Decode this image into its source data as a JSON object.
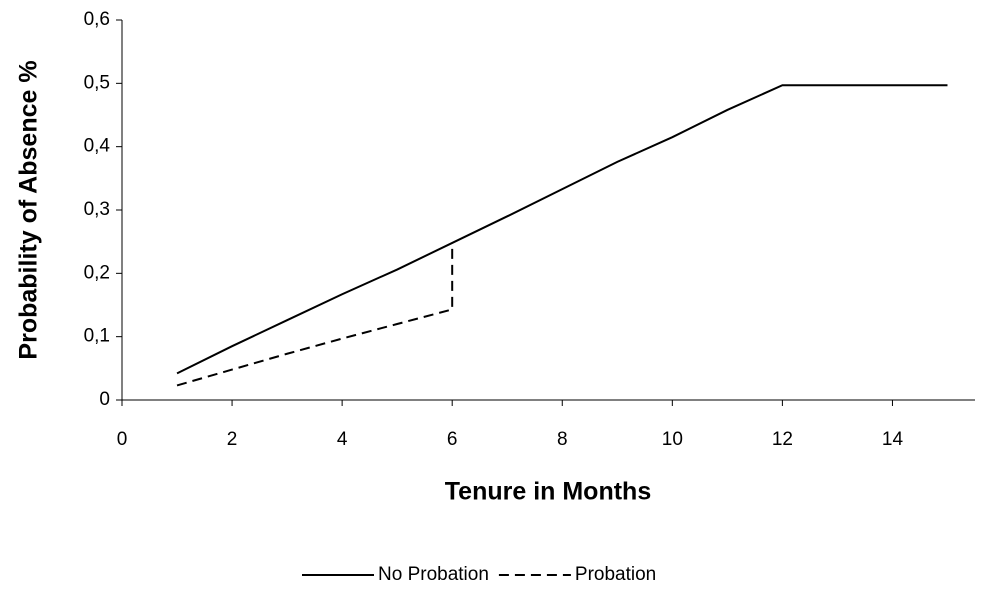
{
  "chart_data": {
    "type": "line",
    "x_label": "Tenure in Months",
    "y_label": "Probability of Absence %",
    "xlim": [
      0,
      15.5
    ],
    "xticks": [
      0,
      2,
      4,
      6,
      8,
      10,
      12,
      14
    ],
    "ylim": [
      0,
      0.6
    ],
    "yticks": [
      0,
      {
        "value": 0.1,
        "label": "0,1"
      },
      {
        "value": 0.2,
        "label": "0,2"
      },
      {
        "value": 0.3,
        "label": "0,3"
      },
      {
        "value": 0.4,
        "label": "0,4"
      },
      {
        "value": 0.5,
        "label": "0,5"
      },
      {
        "value": 0.6,
        "label": "0,6"
      }
    ],
    "legend": "bottom",
    "series": [
      {
        "name": "No Probation",
        "color": "#000000",
        "dash": "solid",
        "x": [
          1,
          2,
          3,
          4,
          5,
          6,
          7,
          8,
          9,
          10,
          11,
          12,
          13,
          14,
          15
        ],
        "values": [
          0.042,
          0.085,
          0.126,
          0.167,
          0.206,
          0.248,
          0.29,
          0.333,
          0.376,
          0.415,
          0.458,
          0.497,
          0.497,
          0.497,
          0.497
        ]
      },
      {
        "name": "Probation",
        "color": "#000000",
        "dash": "dashed",
        "x": [
          1,
          2,
          3,
          4,
          5,
          6,
          6
        ],
        "values": [
          0.023,
          0.048,
          0.073,
          0.097,
          0.12,
          0.143,
          0.248
        ]
      }
    ]
  }
}
